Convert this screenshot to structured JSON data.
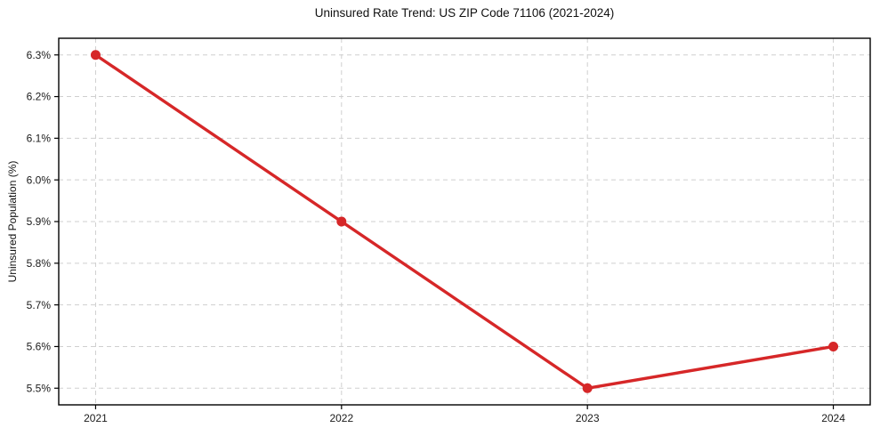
{
  "chart_data": {
    "type": "line",
    "title": "Uninsured Rate Trend: US ZIP Code 71106 (2021-2024)",
    "ylabel": "Uninsured Population (%)",
    "xlabel": "",
    "x": [
      2021,
      2022,
      2023,
      2024
    ],
    "values": [
      6.3,
      5.9,
      5.5,
      5.6
    ],
    "points": [
      {
        "year": "2021",
        "rate_percent": 6.3
      },
      {
        "year": "2022",
        "rate_percent": 5.9
      },
      {
        "year": "2023",
        "rate_percent": 5.5
      },
      {
        "year": "2024",
        "rate_percent": 5.6
      }
    ],
    "xtick_values": [
      2021,
      2022,
      2023,
      2024
    ],
    "xtick_labels": [
      "2021",
      "2022",
      "2023",
      "2024"
    ],
    "ytick_values": [
      5.5,
      5.6,
      5.7,
      5.8,
      5.9,
      6.0,
      6.1,
      6.2,
      6.3
    ],
    "ytick_labels": [
      "5.5%",
      "5.6%",
      "5.7%",
      "5.8%",
      "5.9%",
      "6.0%",
      "6.1%",
      "6.2%",
      "6.3%"
    ],
    "xlim": [
      2020.85,
      2024.15
    ],
    "ylim": [
      5.46,
      6.34
    ],
    "grid": true,
    "grid_style": "dashed",
    "legend": "none",
    "colors": {
      "line": "#d62728",
      "marker": "#d62728",
      "grid": "#cfcfcf",
      "spine": "#000000",
      "tick_text": "#1a1a1a",
      "background": "#ffffff"
    },
    "line_width": 3.4,
    "marker_radius": 5.5
  }
}
